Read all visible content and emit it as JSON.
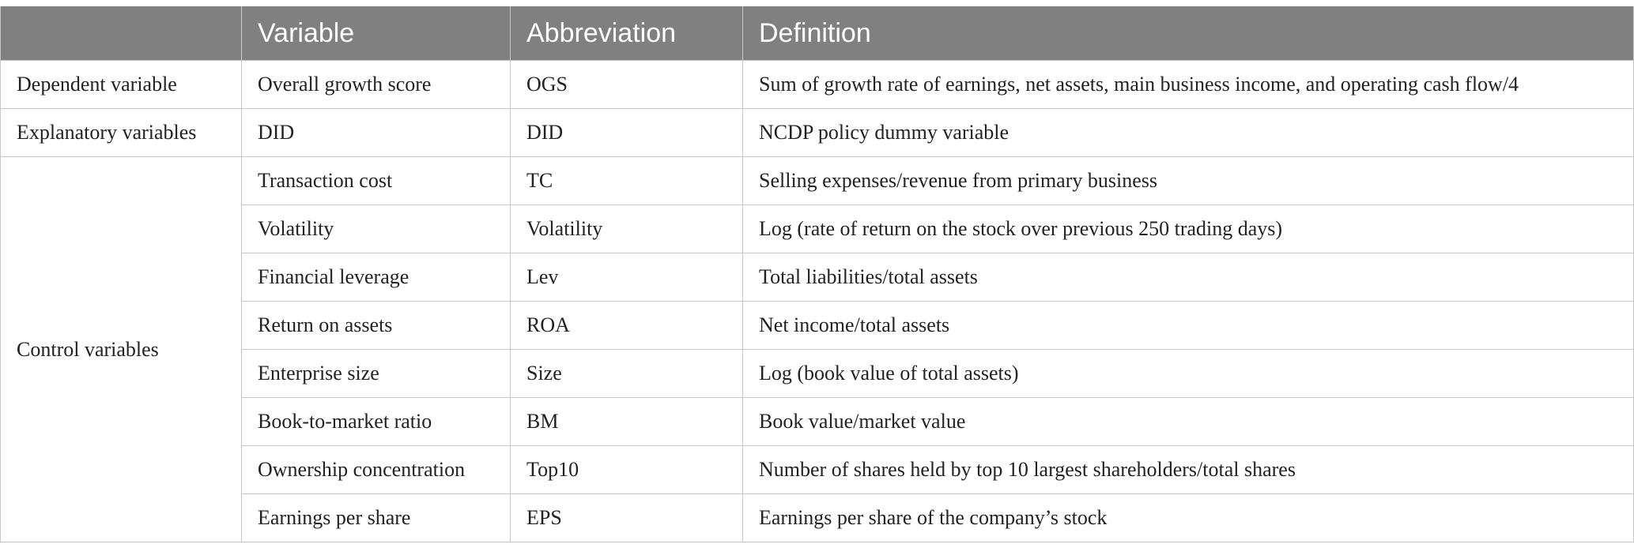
{
  "table": {
    "headers": [
      "",
      "Variable",
      "Abbreviation",
      "Definition"
    ],
    "groups": [
      {
        "label": "Dependent variable",
        "rows": [
          [
            "Overall growth score",
            "OGS",
            "Sum of growth rate of earnings, net assets, main business income, and operating cash flow/4"
          ]
        ]
      },
      {
        "label": "Explanatory variables",
        "rows": [
          [
            "DID",
            "DID",
            "NCDP policy dummy variable"
          ]
        ]
      },
      {
        "label": "Control variables",
        "rows": [
          [
            "Transaction cost",
            "TC",
            "Selling expenses/revenue from primary business"
          ],
          [
            "Volatility",
            "Volatility",
            "Log (rate of return on the stock over previous 250 trading days)"
          ],
          [
            "Financial leverage",
            "Lev",
            "Total liabilities/total assets"
          ],
          [
            "Return on assets",
            "ROA",
            "Net income/total assets"
          ],
          [
            "Enterprise size",
            "Size",
            "Log (book value of total assets)"
          ],
          [
            "Book-to-market ratio",
            "BM",
            "Book value/market value"
          ],
          [
            "Ownership concentration",
            "Top10",
            "Number of shares held by top 10 largest shareholders/total shares"
          ],
          [
            "Earnings per share",
            "EPS",
            "Earnings per share of the company’s stock"
          ]
        ]
      }
    ]
  },
  "colors": {
    "header_bg": "#808080",
    "header_text": "#ffffff",
    "border": "#c8c8c8",
    "body_text": "#222222"
  }
}
